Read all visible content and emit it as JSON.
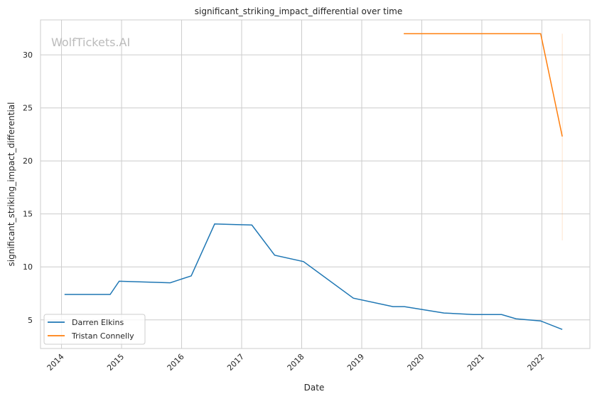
{
  "chart_data": {
    "type": "line",
    "title": "significant_striking_impact_differential over time",
    "xlabel": "Date",
    "ylabel": "significant_striking_impact_differential",
    "xlim": [
      2013.65,
      2022.8
    ],
    "ylim": [
      2.3,
      33.3
    ],
    "xticks": [
      2014,
      2015,
      2016,
      2017,
      2018,
      2019,
      2020,
      2021,
      2022
    ],
    "yticks": [
      5,
      10,
      15,
      20,
      25,
      30
    ],
    "grid": true,
    "legend_position": "lower-left",
    "watermark": "WolfTickets.AI",
    "series": [
      {
        "name": "Darren Elkins",
        "color": "#1f77b4",
        "x": [
          2014.05,
          2014.81,
          2014.96,
          2015.81,
          2016.16,
          2016.55,
          2017.17,
          2017.55,
          2018.03,
          2018.86,
          2019.52,
          2019.71,
          2020.37,
          2020.86,
          2021.33,
          2021.57,
          2021.98,
          2022.34
        ],
        "y": [
          7.4,
          7.4,
          8.65,
          8.5,
          9.15,
          14.05,
          13.95,
          11.1,
          10.5,
          7.05,
          6.25,
          6.25,
          5.65,
          5.5,
          5.5,
          5.1,
          4.9,
          4.1
        ]
      },
      {
        "name": "Tristan Connelly",
        "color": "#ff7f0e",
        "x": [
          2019.7,
          2021.98,
          2022.34
        ],
        "y": [
          32.0,
          32.0,
          22.3
        ],
        "error_band": {
          "x": 2022.34,
          "low": 12.5,
          "high": 32.0
        }
      }
    ]
  }
}
